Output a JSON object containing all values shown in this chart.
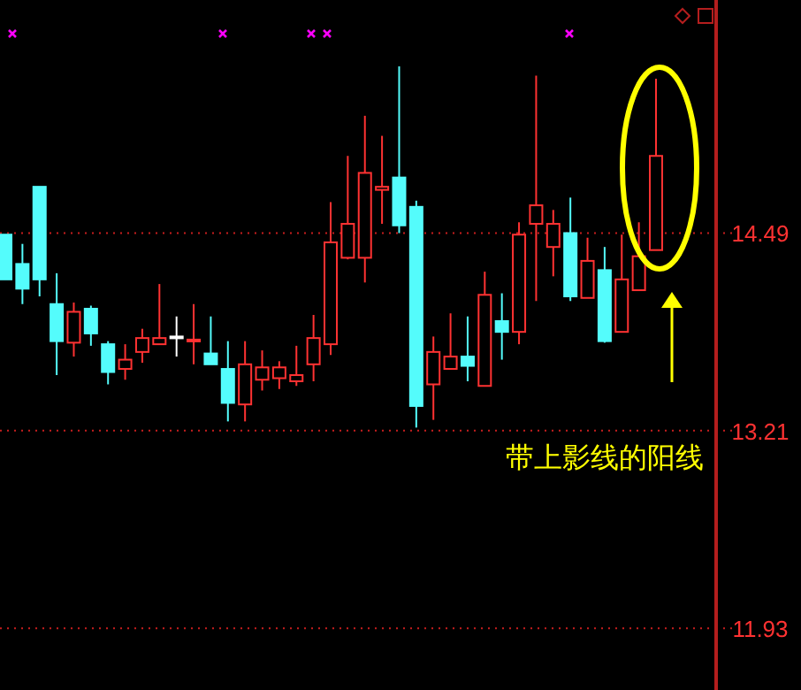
{
  "chart_data": {
    "type": "candlestick",
    "categories": [
      null,
      null,
      null,
      null,
      null,
      null,
      null,
      null,
      null,
      null,
      null,
      null,
      null,
      null,
      null,
      null,
      null,
      null,
      null,
      null,
      null,
      null,
      null,
      null,
      null,
      null,
      null,
      null,
      null,
      null,
      null,
      null,
      null,
      null,
      null,
      null,
      null,
      null,
      null
    ],
    "ohlc": [
      [
        14.48,
        14.48,
        14.19,
        14.19
      ],
      [
        14.29,
        14.42,
        14.03,
        14.13
      ],
      [
        14.79,
        14.79,
        14.08,
        14.19
      ],
      [
        14.03,
        14.23,
        13.57,
        13.79
      ],
      [
        13.78,
        14.04,
        13.69,
        13.98
      ],
      [
        14.0,
        14.02,
        13.76,
        13.84
      ],
      [
        13.77,
        13.79,
        13.51,
        13.59
      ],
      [
        13.61,
        13.77,
        13.54,
        13.67
      ],
      [
        13.72,
        13.87,
        13.65,
        13.81
      ],
      [
        13.77,
        14.16,
        13.77,
        13.81
      ],
      [
        13.82,
        13.95,
        13.69,
        13.82
      ],
      [
        13.79,
        14.03,
        13.64,
        13.8
      ],
      [
        13.71,
        13.95,
        13.64,
        13.64
      ],
      [
        13.61,
        13.79,
        13.27,
        13.39
      ],
      [
        13.38,
        13.79,
        13.27,
        13.64
      ],
      [
        13.54,
        13.73,
        13.47,
        13.62
      ],
      [
        13.55,
        13.66,
        13.48,
        13.62
      ],
      [
        13.53,
        13.76,
        13.5,
        13.57
      ],
      [
        13.64,
        13.96,
        13.53,
        13.81
      ],
      [
        13.77,
        14.69,
        13.7,
        14.43
      ],
      [
        14.33,
        14.99,
        14.32,
        14.55
      ],
      [
        14.33,
        15.25,
        14.17,
        14.88
      ],
      [
        14.77,
        15.12,
        14.55,
        14.79
      ],
      [
        14.85,
        15.57,
        14.49,
        14.54
      ],
      [
        14.66,
        14.7,
        13.23,
        13.37
      ],
      [
        13.51,
        13.82,
        13.28,
        13.72
      ],
      [
        13.61,
        13.97,
        13.61,
        13.69
      ],
      [
        13.69,
        13.95,
        13.53,
        13.63
      ],
      [
        13.5,
        14.24,
        13.5,
        14.09
      ],
      [
        13.92,
        14.1,
        13.67,
        13.85
      ],
      [
        13.85,
        14.56,
        13.77,
        14.48
      ],
      [
        14.55,
        15.51,
        14.05,
        14.67
      ],
      [
        14.4,
        14.64,
        14.21,
        14.55
      ],
      [
        14.49,
        14.72,
        14.05,
        14.08
      ],
      [
        14.07,
        14.46,
        14.07,
        14.31
      ],
      [
        14.25,
        14.4,
        13.78,
        13.79
      ],
      [
        13.85,
        14.48,
        13.85,
        14.19
      ],
      [
        14.12,
        14.56,
        14.12,
        14.34
      ],
      [
        14.38,
        15.49,
        14.38,
        14.99
      ]
    ],
    "colors": [
      "#54fcfc",
      "#54fcfc",
      "#54fcfc",
      "#54fcfc",
      "#ff3232",
      "#54fcfc",
      "#54fcfc",
      "#ff3232",
      "#ff3232",
      "#ff3232",
      "#ffffff",
      "#ff3232",
      "#54fcfc",
      "#54fcfc",
      "#ff3232",
      "#ff3232",
      "#ff3232",
      "#ff3232",
      "#ff3232",
      "#ff3232",
      "#ff3232",
      "#ff3232",
      "#ff3232",
      "#54fcfc",
      "#54fcfc",
      "#ff3232",
      "#ff3232",
      "#54fcfc",
      "#ff3232",
      "#54fcfc",
      "#ff3232",
      "#ff3232",
      "#ff3232",
      "#54fcfc",
      "#ff3232",
      "#54fcfc",
      "#ff3232",
      "#ff3232",
      "#ff3232"
    ],
    "ylim": [
      11.53,
      16.0
    ],
    "yticks": [
      14.49,
      13.21,
      11.93
    ],
    "grid": "y",
    "annotations": [
      "带上影线的阳线"
    ]
  }
}
